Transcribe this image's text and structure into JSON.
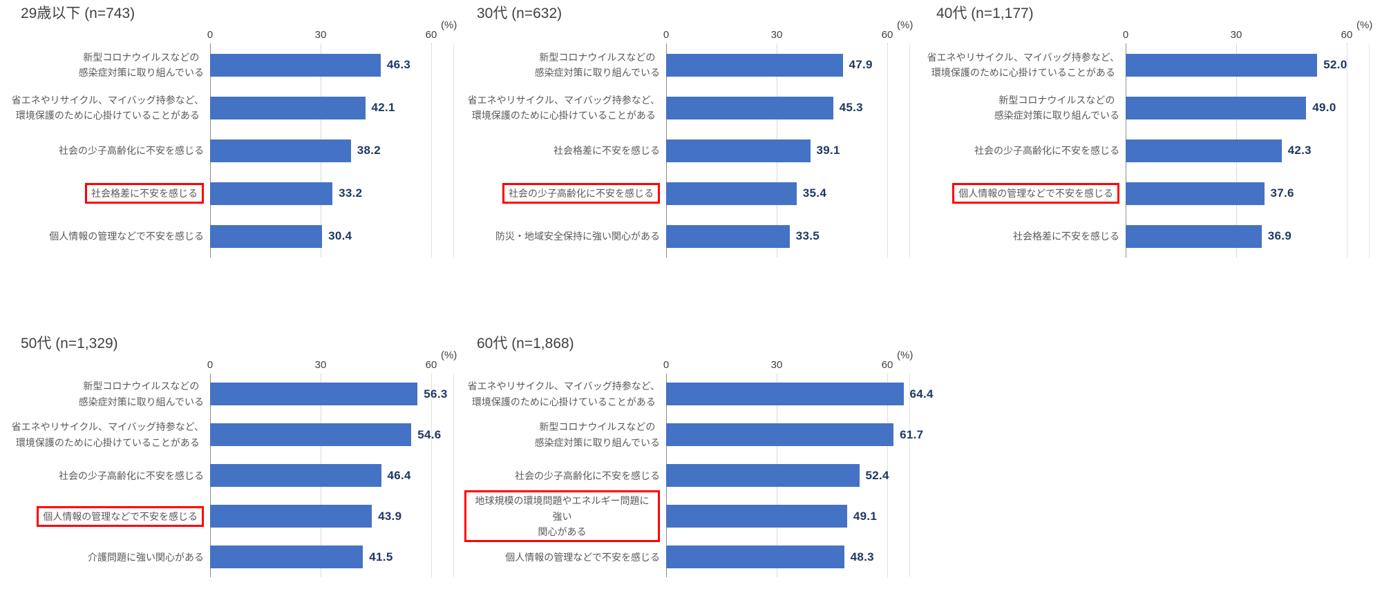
{
  "page": {
    "background": "#ffffff"
  },
  "style": {
    "bar_color": "#4472C4",
    "value_color": "#1F3864",
    "label_color": "#595959",
    "title_color": "#404040",
    "highlight_border_color": "#FF0000",
    "gridline_color": "#D9D9D9",
    "axis_line_color": "#8C8C8C"
  },
  "axis": {
    "ticks": [
      "0",
      "30",
      "60"
    ],
    "tick_values": [
      0,
      30,
      60
    ],
    "unit_label": "(%)",
    "max_value": 66
  },
  "chart_data": [
    {
      "type": "bar",
      "orientation": "horizontal",
      "title": "29歳以下 (n=743)",
      "xlabel": "(%)",
      "xlim": [
        0,
        60
      ],
      "grid": true,
      "categories": [
        "新型コロナウイルスなどの\n感染症対策に取り組んでいる",
        "省エネやリサイクル、マイバッグ持参など、\n環境保護のために心掛けていることがある",
        "社会の少子高齢化に不安を感じる",
        "社会格差に不安を感じる",
        "個人情報の管理などで不安を感じる"
      ],
      "values": [
        46.3,
        42.1,
        38.2,
        33.2,
        30.4
      ],
      "value_labels": [
        "46.3",
        "42.1",
        "38.2",
        "33.2",
        "30.4"
      ],
      "highlighted_index": 3,
      "highlighted_category": "社会格差に不安を感じる"
    },
    {
      "type": "bar",
      "orientation": "horizontal",
      "title": "30代 (n=632)",
      "xlabel": "(%)",
      "xlim": [
        0,
        60
      ],
      "grid": true,
      "categories": [
        "新型コロナウイルスなどの\n感染症対策に取り組んでいる",
        "省エネやリサイクル、マイバッグ持参など、\n環境保護のために心掛けていることがある",
        "社会格差に不安を感じる",
        "社会の少子高齢化に不安を感じる",
        "防災・地域安全保持に強い関心がある"
      ],
      "values": [
        47.9,
        45.3,
        39.1,
        35.4,
        33.5
      ],
      "value_labels": [
        "47.9",
        "45.3",
        "39.1",
        "35.4",
        "33.5"
      ],
      "highlighted_index": 3,
      "highlighted_category": "社会の少子高齢化に不安を感じる"
    },
    {
      "type": "bar",
      "orientation": "horizontal",
      "title": "40代 (n=1,177)",
      "xlabel": "(%)",
      "xlim": [
        0,
        60
      ],
      "grid": true,
      "categories": [
        "省エネやリサイクル、マイバッグ持参など、\n環境保護のために心掛けていることがある",
        "新型コロナウイルスなどの\n感染症対策に取り組んでいる",
        "社会の少子高齢化に不安を感じる",
        "個人情報の管理などで不安を感じる",
        "社会格差に不安を感じる"
      ],
      "values": [
        52.0,
        49.0,
        42.3,
        37.6,
        36.9
      ],
      "value_labels": [
        "52.0",
        "49.0",
        "42.3",
        "37.6",
        "36.9"
      ],
      "highlighted_index": 3,
      "highlighted_category": "個人情報の管理などで不安を感じる"
    },
    {
      "type": "bar",
      "orientation": "horizontal",
      "title": "50代 (n=1,329)",
      "xlabel": "(%)",
      "xlim": [
        0,
        60
      ],
      "grid": true,
      "categories": [
        "新型コロナウイルスなどの\n感染症対策に取り組んでいる",
        "省エネやリサイクル、マイバッグ持参など、\n環境保護のために心掛けていることがある",
        "社会の少子高齢化に不安を感じる",
        "個人情報の管理などで不安を感じる",
        "介護問題に強い関心がある"
      ],
      "values": [
        56.3,
        54.6,
        46.4,
        43.9,
        41.5
      ],
      "value_labels": [
        "56.3",
        "54.6",
        "46.4",
        "43.9",
        "41.5"
      ],
      "highlighted_index": 3,
      "highlighted_category": "個人情報の管理などで不安を感じる"
    },
    {
      "type": "bar",
      "orientation": "horizontal",
      "title": "60代 (n=1,868)",
      "xlabel": "(%)",
      "xlim": [
        0,
        60
      ],
      "grid": true,
      "categories": [
        "省エネやリサイクル、マイバッグ持参など、\n環境保護のために心掛けていることがある",
        "新型コロナウイルスなどの\n感染症対策に取り組んでいる",
        "社会の少子高齢化に不安を感じる",
        "地球規模の環境問題やエネルギー問題に強い\n関心がある",
        "個人情報の管理などで不安を感じる"
      ],
      "values": [
        64.4,
        61.7,
        52.4,
        49.1,
        48.3
      ],
      "value_labels": [
        "64.4",
        "61.7",
        "52.4",
        "49.1",
        "48.3"
      ],
      "highlighted_index": 3,
      "highlighted_category": "地球規模の環境問題やエネルギー問題に強い関心がある"
    }
  ]
}
